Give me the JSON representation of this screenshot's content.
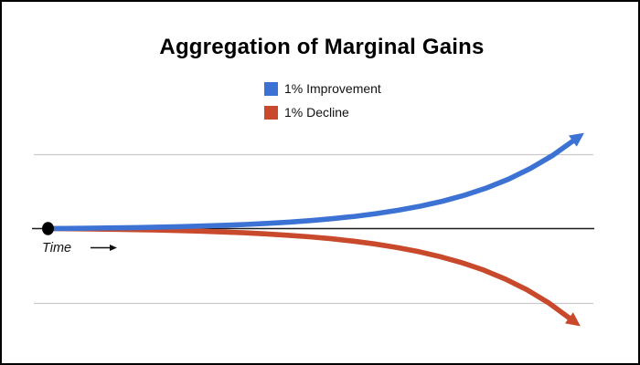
{
  "frame": {
    "background": "#ffffff",
    "border_color": "#000000"
  },
  "chart_data": {
    "type": "line",
    "title": "Aggregation of Marginal Gains",
    "xlabel": "Time",
    "ylabel": "",
    "x_axis": {
      "label": "Time",
      "direction_arrow": "right",
      "tick_labels": "none",
      "origin_marker": "black dot at start of baseline"
    },
    "y_axis": {
      "tick_labels": "none",
      "gridlines": "two light horizontal lines, one above and one below the baseline",
      "baseline": "solid dark horizontal line"
    },
    "legend": {
      "position": "top-center",
      "entries": [
        "1% Improvement",
        "1% Decline"
      ]
    },
    "value_units": "relative change vs. baseline, normalized so each curve endpoint is magnitude 1",
    "x_range_units": "time (unitless, 0 to 1)",
    "series": [
      {
        "name": "1% Improvement",
        "color": "#3c72d3",
        "trend": "compounding exponential growth, ends in up-right arrowhead",
        "values": [
          0,
          0.0021,
          0.0047,
          0.0079,
          0.0117,
          0.0163,
          0.0219,
          0.0287,
          0.0369,
          0.0468,
          0.0589,
          0.0735,
          0.0911,
          0.1125,
          0.1384,
          0.1698,
          0.2078,
          0.2539,
          0.3097,
          0.3772,
          0.459,
          0.5582,
          0.6782,
          0.8236,
          1.0
        ]
      },
      {
        "name": "1% Decline",
        "color": "#c8492b",
        "trend": "compounding exponential decline, ends in down-right arrowhead",
        "values": [
          0,
          -0.0021,
          -0.0047,
          -0.0079,
          -0.0117,
          -0.0163,
          -0.0219,
          -0.0287,
          -0.0369,
          -0.0468,
          -0.0589,
          -0.0735,
          -0.0911,
          -0.1125,
          -0.1384,
          -0.1698,
          -0.2078,
          -0.2539,
          -0.3097,
          -0.3772,
          -0.459,
          -0.5582,
          -0.6782,
          -0.8236,
          -1.0
        ]
      }
    ],
    "style": {
      "gridline_color": "#cacaca",
      "axis_color": "#1c1c1c",
      "dot_color": "#000000"
    }
  }
}
